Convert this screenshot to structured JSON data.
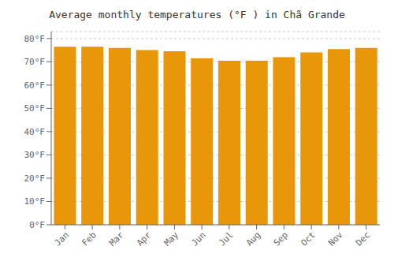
{
  "chart_data": {
    "type": "bar",
    "title": "Average monthly temperatures (°F ) in Chã Grande",
    "categories": [
      "Jan",
      "Feb",
      "Mar",
      "Apr",
      "May",
      "Jun",
      "Jul",
      "Aug",
      "Sep",
      "Oct",
      "Nov",
      "Dec"
    ],
    "values": [
      76.5,
      76.5,
      76.0,
      75.0,
      74.5,
      71.5,
      70.5,
      70.5,
      72.0,
      74.0,
      75.5,
      76.0
    ],
    "color": "#E8960A",
    "ylim": [
      0,
      83
    ],
    "yticks": [
      {
        "value": 0,
        "label": "0°F"
      },
      {
        "value": 10,
        "label": "10°F"
      },
      {
        "value": 20,
        "label": "20°F"
      },
      {
        "value": 30,
        "label": "30°F"
      },
      {
        "value": 40,
        "label": "40°F"
      },
      {
        "value": 50,
        "label": "50°F"
      },
      {
        "value": 60,
        "label": "60°F"
      },
      {
        "value": 70,
        "label": "70°F"
      },
      {
        "value": 80,
        "label": "80°F"
      }
    ],
    "grid": true
  }
}
